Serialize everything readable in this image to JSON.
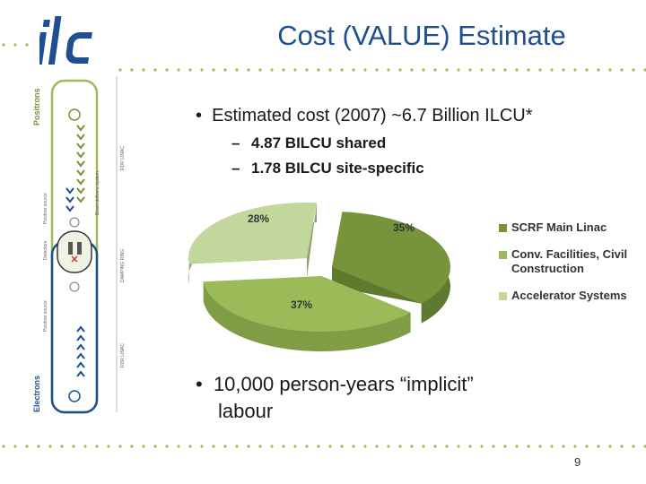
{
  "title": "Cost (VALUE) Estimate",
  "logo_text": "ilc",
  "diagram": {
    "top_label": "Positrons",
    "bottom_label": "Electrons",
    "left_labels": [
      "Positron source",
      "Detectors",
      "Positron source"
    ],
    "right_labels": [
      "RDR LINAC",
      "Beam delivery system",
      "DAMPING RING",
      "RDR LINAC"
    ]
  },
  "bullet1": "Estimated cost (2007) ~6.7 Billion ILCU*",
  "sub_bullets": [
    "4.87 BILCU shared",
    "1.78 BILCU site-specific"
  ],
  "chart_data": {
    "type": "pie",
    "categories": [
      "SCRF Main Linac",
      "Conv. Facilities, Civil Construction",
      "Accelerator Systems"
    ],
    "values": [
      35,
      37,
      28
    ],
    "labels": [
      "35%",
      "37%",
      "28%"
    ],
    "colors": [
      "#77933c",
      "#9bbb59",
      "#c3d69b"
    ],
    "legend_position": "right"
  },
  "bullet2_line1": "10,000 person-years “implicit”",
  "bullet2_line2": "labour",
  "page_number": "9"
}
